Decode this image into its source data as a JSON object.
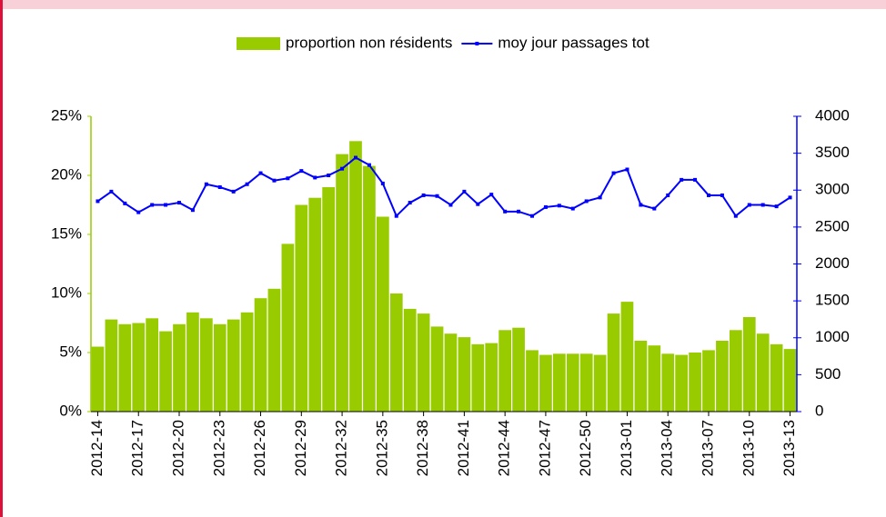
{
  "chart_data": {
    "type": "bar-line",
    "categories": [
      "2012-14",
      null,
      null,
      "2012-17",
      null,
      null,
      "2012-20",
      null,
      null,
      "2012-23",
      null,
      null,
      "2012-26",
      null,
      null,
      "2012-29",
      null,
      null,
      "2012-32",
      null,
      null,
      "2012-35",
      null,
      null,
      "2012-38",
      null,
      null,
      "2012-41",
      null,
      null,
      "2012-44",
      null,
      null,
      "2012-47",
      null,
      null,
      "2012-50",
      null,
      null,
      "2013-01",
      null,
      null,
      "2013-04",
      null,
      null,
      "2013-07",
      null,
      null,
      "2013-10",
      null,
      null,
      "2013-13"
    ],
    "series": [
      {
        "name": "proportion non résidents",
        "color": "#99cc00",
        "type": "bar",
        "values": [
          5.5,
          7.8,
          7.4,
          7.5,
          7.9,
          6.8,
          7.4,
          8.4,
          7.9,
          7.4,
          7.8,
          8.4,
          9.6,
          10.4,
          14.2,
          17.5,
          18.1,
          19.0,
          21.8,
          22.9,
          20.8,
          16.5,
          10.0,
          8.7,
          8.3,
          7.2,
          6.6,
          6.3,
          5.7,
          5.8,
          6.9,
          7.1,
          5.2,
          4.8,
          4.9,
          4.9,
          4.9,
          4.8,
          8.3,
          9.3,
          6.0,
          5.6,
          4.9,
          4.8,
          5.0,
          5.2,
          6.0,
          6.9,
          8.0,
          6.6,
          5.7,
          5.3
        ]
      },
      {
        "name": "moy jour passages tot",
        "color": "#0000ff",
        "type": "line",
        "axis": "y2",
        "values": [
          2850,
          2980,
          2820,
          2700,
          2800,
          2800,
          2830,
          2730,
          3080,
          3040,
          2980,
          3080,
          3230,
          3130,
          3160,
          3260,
          3170,
          3200,
          3290,
          3440,
          3340,
          3090,
          2650,
          2830,
          2930,
          2920,
          2800,
          2980,
          2810,
          2940,
          2710,
          2710,
          2650,
          2770,
          2790,
          2750,
          2850,
          2900,
          3230,
          3280,
          2800,
          2750,
          2930,
          3140,
          3140,
          2930,
          2930,
          2650,
          2800,
          2800,
          2780,
          2900
        ]
      }
    ],
    "ylim": [
      0,
      25
    ],
    "yticks": [
      {
        "value": 0,
        "label": "0%"
      },
      {
        "value": 5,
        "label": "5%"
      },
      {
        "value": 10,
        "label": "10%"
      },
      {
        "value": 15,
        "label": "15%"
      },
      {
        "value": 20,
        "label": "20%"
      },
      {
        "value": 25,
        "label": "25%"
      }
    ],
    "y2lim": [
      0,
      4000
    ],
    "y2ticks": [
      0,
      500,
      1000,
      1500,
      2000,
      2500,
      3000,
      3500,
      4000
    ]
  }
}
